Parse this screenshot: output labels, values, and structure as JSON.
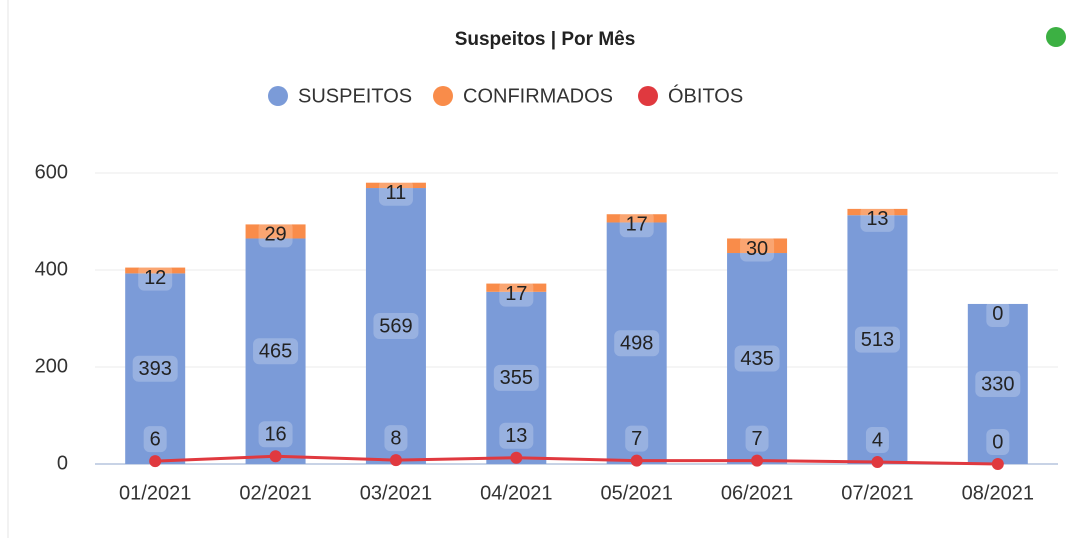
{
  "chart_data": {
    "type": "bar",
    "stacked": true,
    "title": "Suspeitos | Por Mês",
    "categories": [
      "01/2021",
      "02/2021",
      "03/2021",
      "04/2021",
      "05/2021",
      "06/2021",
      "07/2021",
      "08/2021"
    ],
    "series": [
      {
        "name": "SUSPEITOS",
        "color": "#7b9bd8",
        "type": "bar",
        "values": [
          393,
          465,
          569,
          355,
          498,
          435,
          513,
          330
        ]
      },
      {
        "name": "CONFIRMADOS",
        "color": "#f98c4a",
        "type": "bar",
        "values": [
          12,
          29,
          11,
          17,
          17,
          30,
          13,
          0
        ]
      },
      {
        "name": "ÓBITOS",
        "color": "#e0393f",
        "type": "line",
        "values": [
          6,
          16,
          8,
          13,
          7,
          7,
          4,
          0
        ]
      }
    ],
    "ylim": [
      0,
      600
    ],
    "yticks": [
      0,
      200,
      400,
      600
    ],
    "grid": true,
    "legend": "top"
  }
}
